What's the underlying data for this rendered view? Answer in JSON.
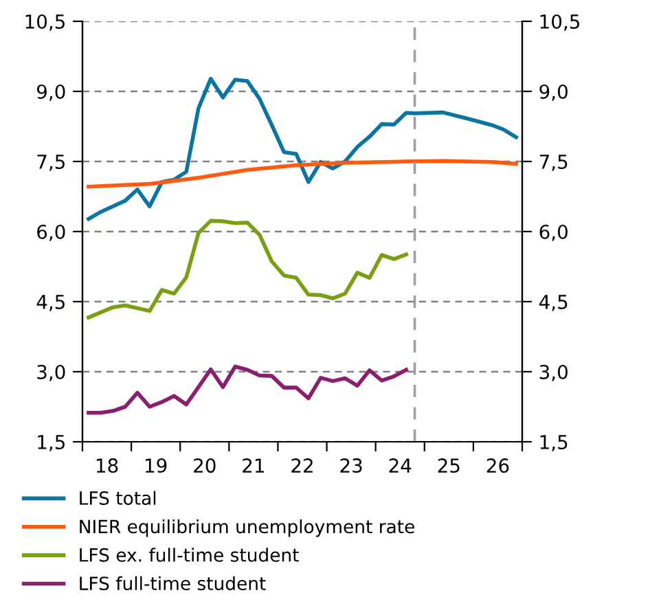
{
  "chart_data": {
    "type": "line",
    "x": [
      17.625,
      17.875,
      18.125,
      18.375,
      18.625,
      18.875,
      19.125,
      19.375,
      19.625,
      19.875,
      20.125,
      20.375,
      20.625,
      20.875,
      21.125,
      21.375,
      21.625,
      21.875,
      22.125,
      22.375,
      22.625,
      22.875,
      23.125,
      23.375,
      23.625,
      23.875,
      24.125
    ],
    "series": [
      {
        "name": "LFS total",
        "color": "#0a75a0",
        "x": [
          17.625,
          17.875,
          18.125,
          18.375,
          18.625,
          18.875,
          19.125,
          19.375,
          19.625,
          19.875,
          20.125,
          20.375,
          20.625,
          20.875,
          21.125,
          21.375,
          21.625,
          21.875,
          22.125,
          22.375,
          22.625,
          22.875,
          23.125,
          23.375,
          23.625,
          23.875,
          24.125,
          24.3,
          24.875,
          25.375,
          25.875,
          26.125,
          26.375
        ],
        "values": [
          6.27,
          6.42,
          6.54,
          6.66,
          6.9,
          6.54,
          7.06,
          7.11,
          7.28,
          8.64,
          9.27,
          8.87,
          9.25,
          9.22,
          8.84,
          8.28,
          7.7,
          7.66,
          7.06,
          7.49,
          7.35,
          7.5,
          7.81,
          8.03,
          8.3,
          8.29,
          8.54,
          8.53,
          8.55,
          8.42,
          8.28,
          8.18,
          8.02
        ]
      },
      {
        "name": "NIER equilibrium unemployment rate",
        "color": "#ff5a0f",
        "x": [
          17.625,
          18.875,
          19.875,
          20.875,
          21.875,
          22.875,
          24.125,
          24.875,
          25.875,
          26.375
        ],
        "values": [
          6.96,
          7.02,
          7.15,
          7.32,
          7.42,
          7.47,
          7.5,
          7.51,
          7.49,
          7.45
        ]
      },
      {
        "name": "LFS ex. full-time student",
        "color": "#7a9f12",
        "values": [
          4.16,
          4.27,
          4.38,
          4.42,
          4.36,
          4.3,
          4.75,
          4.67,
          5.02,
          5.97,
          6.23,
          6.22,
          6.18,
          6.19,
          5.93,
          5.36,
          5.06,
          5.01,
          4.65,
          4.64,
          4.57,
          4.67,
          5.12,
          5.01,
          5.5,
          5.41,
          5.51
        ]
      },
      {
        "name": "LFS full-time student",
        "color": "#8a1f6e",
        "values": [
          2.12,
          2.12,
          2.16,
          2.25,
          2.55,
          2.25,
          2.35,
          2.48,
          2.3,
          2.67,
          3.05,
          2.67,
          3.11,
          3.04,
          2.92,
          2.91,
          2.66,
          2.66,
          2.43,
          2.87,
          2.8,
          2.86,
          2.7,
          3.03,
          2.81,
          2.9,
          3.04
        ]
      }
    ],
    "xlim": [
      17.5,
      26.5
    ],
    "xticks": [
      {
        "value": 17.5,
        "label": null
      },
      18,
      {
        "value": 18.5,
        "label": null
      },
      19,
      {
        "value": 19.5,
        "label": null
      },
      20,
      {
        "value": 20.5,
        "label": null
      },
      21,
      {
        "value": 21.5,
        "label": null
      },
      22,
      {
        "value": 22.5,
        "label": null
      },
      23,
      {
        "value": 23.5,
        "label": null
      },
      24,
      {
        "value": 24.5,
        "label": null
      },
      25,
      {
        "value": 25.5,
        "label": null
      },
      26,
      {
        "value": 26.5,
        "label": null
      }
    ],
    "ylim": [
      1.5,
      10.5
    ],
    "yticks": [
      {
        "value": 1.5,
        "label": "1,5"
      },
      {
        "value": 3,
        "label": "3,0"
      },
      {
        "value": 4.5,
        "label": "4,5"
      },
      {
        "value": 6,
        "label": "6,0"
      },
      {
        "value": 7.5,
        "label": "7,5"
      },
      {
        "value": 9,
        "label": "9,0"
      },
      {
        "value": 10.5,
        "label": "10,5"
      }
    ],
    "y2lim": [
      1.5,
      10.5
    ],
    "y2ticks": [
      {
        "value": 1.5,
        "label": "1,5"
      },
      {
        "value": 3,
        "label": "3,0"
      },
      {
        "value": 4.5,
        "label": "4,5"
      },
      {
        "value": 6,
        "label": "6,0"
      },
      {
        "value": 7.5,
        "label": "7,5"
      },
      {
        "value": 9,
        "label": "9,0"
      },
      {
        "value": 10.5,
        "label": "10,5"
      }
    ],
    "ref_lines": [
      {
        "axis": "x",
        "value": 24.3,
        "label": null,
        "color": "#a0a0a0",
        "line_style": "dashed"
      }
    ],
    "grid": "y",
    "legend": "bottom",
    "marker": "none",
    "line_style": "solid"
  }
}
